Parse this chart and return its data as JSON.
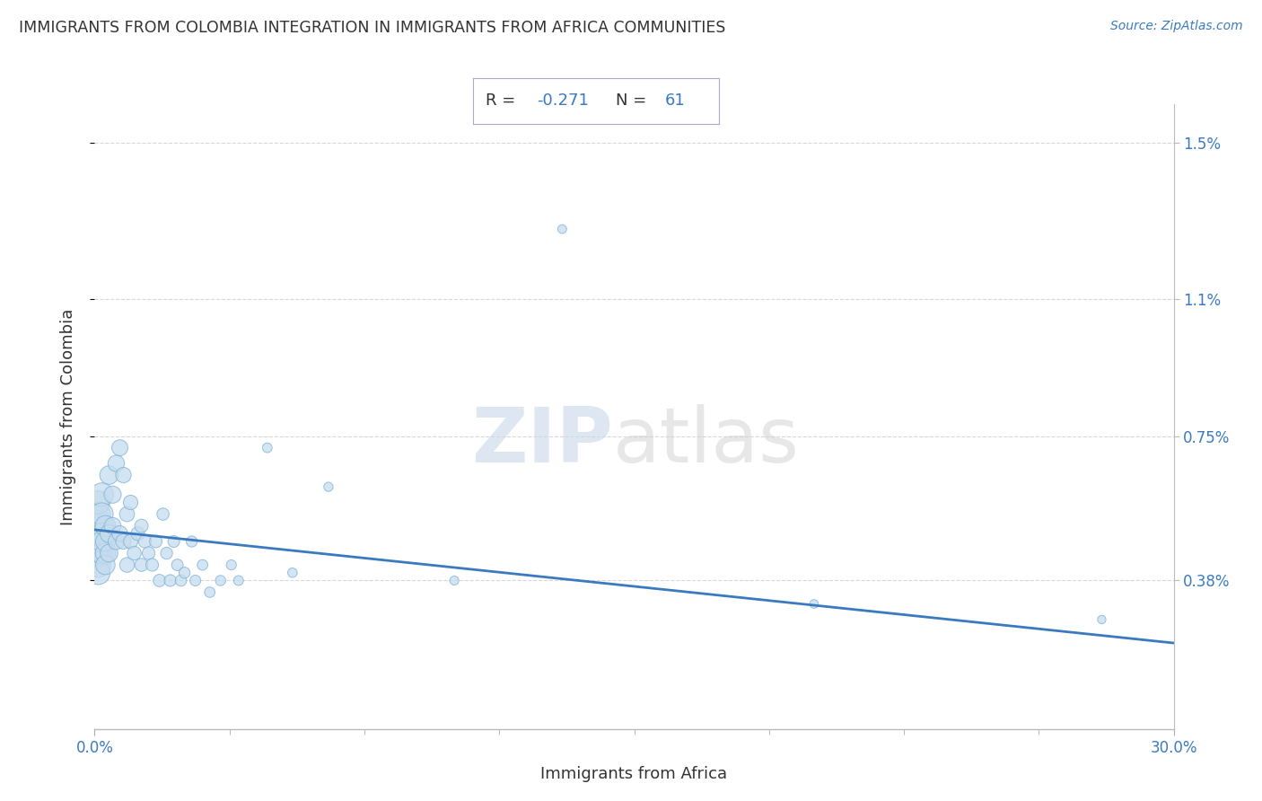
{
  "title": "IMMIGRANTS FROM COLOMBIA INTEGRATION IN IMMIGRANTS FROM AFRICA COMMUNITIES",
  "source": "Source: ZipAtlas.com",
  "xlabel": "Immigrants from Africa",
  "ylabel": "Immigrants from Colombia",
  "xlim": [
    0.0,
    0.3
  ],
  "ylim": [
    0.0,
    0.016
  ],
  "xtick_vals": [
    0.0,
    0.3
  ],
  "xtick_labels": [
    "0.0%",
    "30.0%"
  ],
  "ytick_vals": [
    0.0038,
    0.0075,
    0.011,
    0.015
  ],
  "ytick_labels": [
    "0.38%",
    "0.75%",
    "1.1%",
    "1.5%"
  ],
  "R_val": "-0.271",
  "N_val": "61",
  "scatter_face_color": "#c5dcee",
  "scatter_edge_color": "#7aafd4",
  "line_color": "#3a7abf",
  "grid_color": "#d8d8d8",
  "regression_x0": 0.0,
  "regression_y0": 0.0051,
  "regression_x1": 0.3,
  "regression_y1": 0.0022,
  "scatter_x": [
    0.001,
    0.001,
    0.001,
    0.001,
    0.001,
    0.001,
    0.001,
    0.002,
    0.002,
    0.002,
    0.002,
    0.002,
    0.003,
    0.003,
    0.003,
    0.003,
    0.004,
    0.004,
    0.004,
    0.005,
    0.005,
    0.006,
    0.006,
    0.007,
    0.007,
    0.008,
    0.008,
    0.009,
    0.009,
    0.01,
    0.01,
    0.011,
    0.012,
    0.013,
    0.013,
    0.014,
    0.015,
    0.016,
    0.017,
    0.018,
    0.019,
    0.02,
    0.021,
    0.022,
    0.023,
    0.024,
    0.025,
    0.027,
    0.028,
    0.03,
    0.032,
    0.035,
    0.038,
    0.04,
    0.048,
    0.055,
    0.065,
    0.1,
    0.13,
    0.2,
    0.28
  ],
  "scatter_y": [
    0.0052,
    0.0048,
    0.0045,
    0.0042,
    0.0055,
    0.004,
    0.0058,
    0.006,
    0.0055,
    0.0045,
    0.005,
    0.0048,
    0.0052,
    0.0045,
    0.0048,
    0.0042,
    0.0065,
    0.005,
    0.0045,
    0.006,
    0.0052,
    0.0068,
    0.0048,
    0.0072,
    0.005,
    0.0065,
    0.0048,
    0.0055,
    0.0042,
    0.0058,
    0.0048,
    0.0045,
    0.005,
    0.0052,
    0.0042,
    0.0048,
    0.0045,
    0.0042,
    0.0048,
    0.0038,
    0.0055,
    0.0045,
    0.0038,
    0.0048,
    0.0042,
    0.0038,
    0.004,
    0.0048,
    0.0038,
    0.0042,
    0.0035,
    0.0038,
    0.0042,
    0.0038,
    0.0072,
    0.004,
    0.0062,
    0.0038,
    0.0128,
    0.0032,
    0.0028
  ],
  "scatter_sizes": [
    600,
    500,
    450,
    400,
    380,
    360,
    340,
    350,
    330,
    310,
    290,
    280,
    270,
    260,
    250,
    240,
    220,
    210,
    200,
    190,
    180,
    175,
    170,
    165,
    160,
    155,
    150,
    145,
    140,
    135,
    130,
    125,
    120,
    115,
    110,
    108,
    105,
    102,
    100,
    98,
    95,
    92,
    90,
    88,
    85,
    83,
    80,
    78,
    75,
    72,
    70,
    68,
    65,
    62,
    60,
    58,
    55,
    52,
    50,
    48,
    45
  ]
}
